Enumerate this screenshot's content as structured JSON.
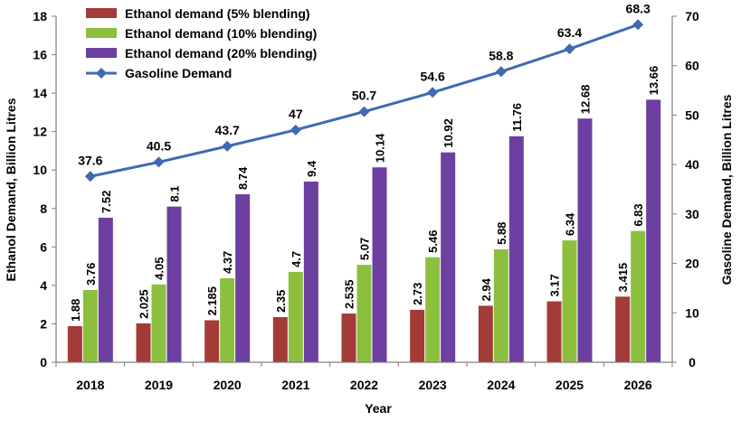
{
  "chart_data": {
    "type": "bar",
    "categories": [
      "2018",
      "2019",
      "2020",
      "2021",
      "2022",
      "2023",
      "2024",
      "2025",
      "2026"
    ],
    "series": [
      {
        "name": "Ethanol demand (5% blending)",
        "values": [
          1.88,
          2.025,
          2.185,
          2.35,
          2.535,
          2.73,
          2.94,
          3.17,
          3.415
        ],
        "labels": [
          "1.88",
          "2.025",
          "2.185",
          "2.35",
          "2.535",
          "2.73",
          "2.94",
          "3.17",
          "3.415"
        ],
        "color": "#a33b37",
        "axis": "left"
      },
      {
        "name": "Ethanol demand (10% blending)",
        "values": [
          3.76,
          4.05,
          4.37,
          4.7,
          5.07,
          5.46,
          5.88,
          6.34,
          6.83
        ],
        "labels": [
          "3.76",
          "4.05",
          "4.37",
          "4.7",
          "5.07",
          "5.46",
          "5.88",
          "6.34",
          "6.83"
        ],
        "color": "#8dbf3f",
        "axis": "left"
      },
      {
        "name": "Ethanol demand (20% blending)",
        "values": [
          7.52,
          8.1,
          8.74,
          9.4,
          10.14,
          10.92,
          11.76,
          12.68,
          13.66
        ],
        "labels": [
          "7.52",
          "8.1",
          "8.74",
          "9.4",
          "10.14",
          "10.92",
          "11.76",
          "12.68",
          "13.66"
        ],
        "color": "#6c3fa0",
        "axis": "left"
      }
    ],
    "line_series": {
      "name": "Gasoline Demand",
      "values": [
        37.6,
        40.5,
        43.7,
        47,
        50.7,
        54.6,
        58.8,
        63.4,
        68.3
      ],
      "labels": [
        "37.6",
        "40.5",
        "43.7",
        "47",
        "50.7",
        "54.6",
        "58.8",
        "63.4",
        "68.3"
      ],
      "color": "#4169b3",
      "axis": "right",
      "marker": "diamond"
    },
    "xlabel": "Year",
    "ylabel": "Ethanol Demand,  Billion Litres",
    "y2label": "Gasoline Demand,  Billion Litres",
    "ylim": [
      0,
      18
    ],
    "y2lim": [
      0,
      70
    ],
    "yticks": [
      "0",
      "2",
      "4",
      "6",
      "8",
      "10",
      "12",
      "14",
      "16",
      "18"
    ],
    "y2ticks": [
      "0",
      "10",
      "20",
      "30",
      "40",
      "50",
      "60",
      "70"
    ],
    "grid": false,
    "legend_position": "top-left"
  }
}
